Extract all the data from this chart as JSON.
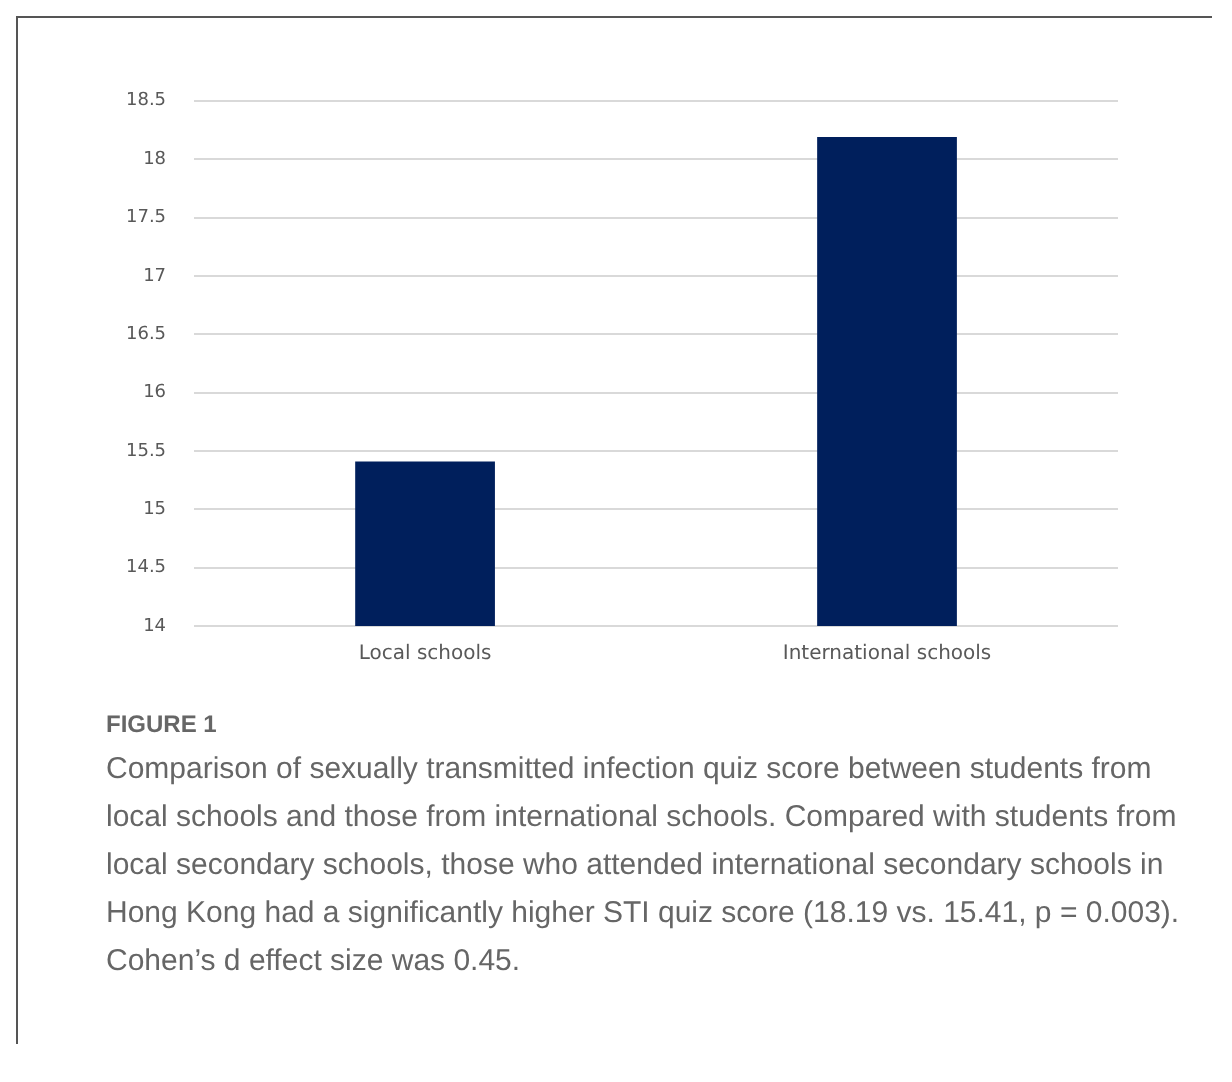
{
  "chart_data": {
    "type": "bar",
    "categories": [
      "Local schools",
      "International schools"
    ],
    "values": [
      15.41,
      18.19
    ],
    "color": "#001f5c",
    "ylim": [
      14,
      18.5
    ],
    "yticks": [
      14,
      14.5,
      15,
      15.5,
      16,
      16.5,
      17,
      17.5,
      18,
      18.5
    ],
    "grid": "y",
    "annotations": [
      "FIGURE 1",
      "Comparison of sexually transmitted infection quiz score between students from local schools and those from international schools. Compared with students from local secondary schools, those who attended international secondary schools in Hong Kong had a significantly higher STI quiz score (18.19 vs. 15.41, p = 0.003). Cohen’s d effect size was 0.45."
    ]
  }
}
